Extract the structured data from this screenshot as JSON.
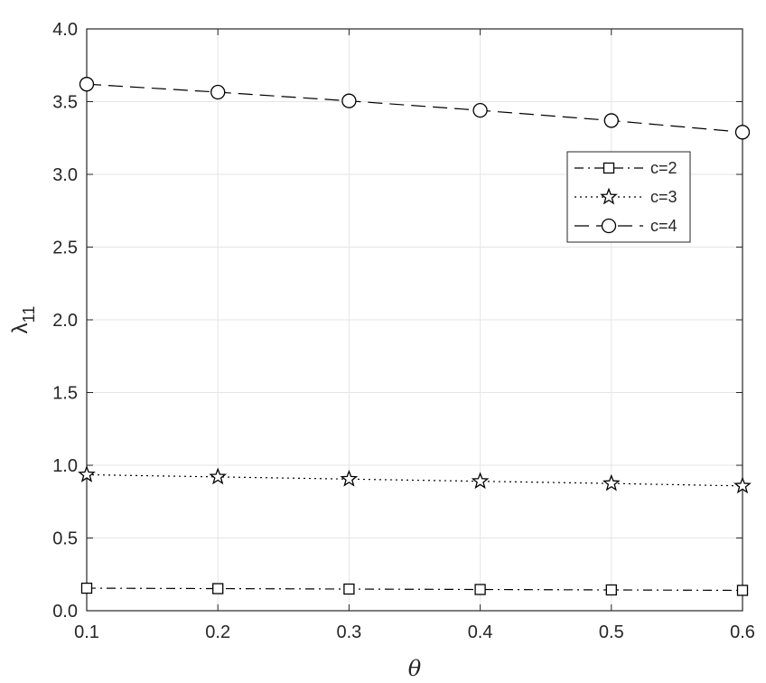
{
  "chart_data": {
    "type": "line",
    "xlabel": "θ",
    "ylabel": "λ",
    "ylabel_subscript": "11",
    "xlim": [
      0.1,
      0.6
    ],
    "ylim": [
      0.0,
      4.0
    ],
    "xticks": [
      "0.1",
      "0.2",
      "0.3",
      "0.4",
      "0.5",
      "0.6"
    ],
    "yticks": [
      "0.0",
      "0.5",
      "1.0",
      "1.5",
      "2.0",
      "2.5",
      "3.0",
      "3.5",
      "4.0"
    ],
    "grid": true,
    "legend_position": "right",
    "x": [
      0.1,
      0.2,
      0.3,
      0.4,
      0.5,
      0.6
    ],
    "series": [
      {
        "name": "c=2",
        "line_style": "dash-dot",
        "marker": "square",
        "values": [
          0.155,
          0.152,
          0.149,
          0.146,
          0.143,
          0.14
        ]
      },
      {
        "name": "c=3",
        "line_style": "dotted",
        "marker": "star",
        "values": [
          0.935,
          0.92,
          0.905,
          0.89,
          0.875,
          0.858
        ]
      },
      {
        "name": "c=4",
        "line_style": "dashed",
        "marker": "circle",
        "values": [
          3.62,
          3.565,
          3.505,
          3.44,
          3.37,
          3.29
        ]
      }
    ],
    "colors": {
      "line": "#000000",
      "grid": "#e5e5e5",
      "axis": "#262626"
    }
  }
}
